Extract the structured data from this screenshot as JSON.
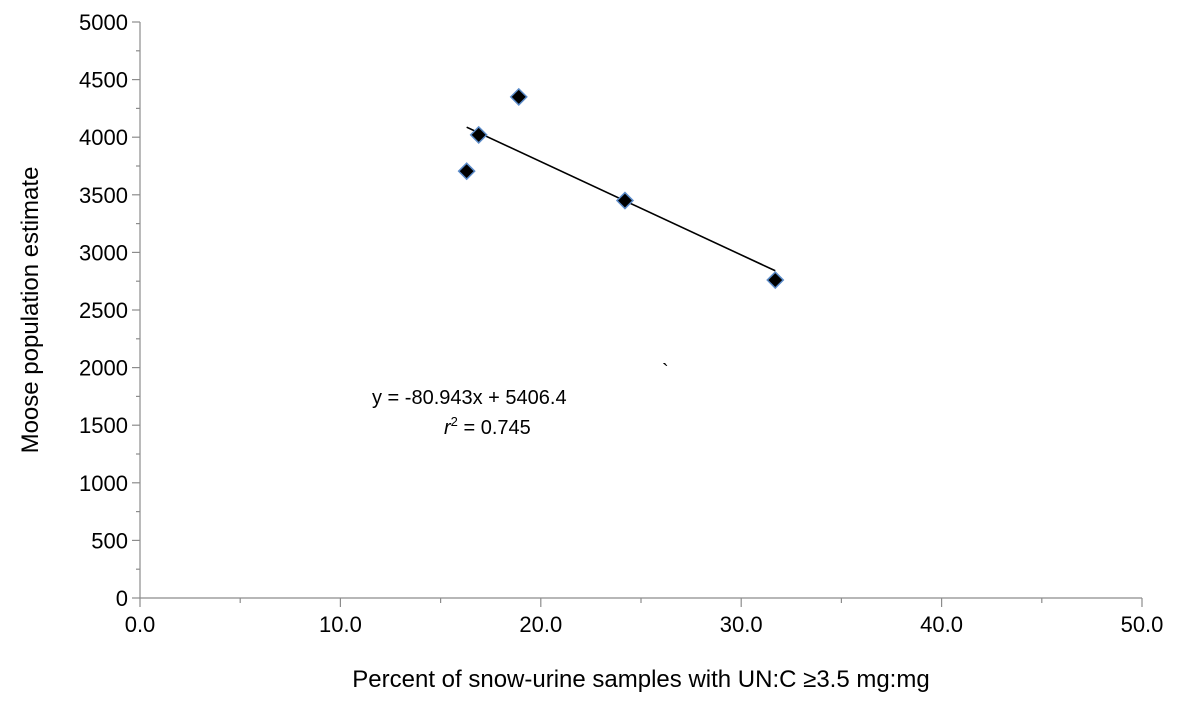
{
  "chart_data": {
    "type": "scatter",
    "xlabel": "Percent of snow-urine samples with UN:C ",
    "xlabel_suffix": "≥3.5 mg:mg",
    "ylabel": "Moose population estimate",
    "xlim": [
      0,
      50
    ],
    "ylim": [
      0,
      5000
    ],
    "x_ticks": [
      "0.0",
      "10.0",
      "20.0",
      "30.0",
      "40.0",
      "50.0"
    ],
    "x_tick_values": [
      0,
      10,
      20,
      30,
      40,
      50
    ],
    "y_ticks": [
      "0",
      "500",
      "1000",
      "1500",
      "2000",
      "2500",
      "3000",
      "3500",
      "4000",
      "4500",
      "5000"
    ],
    "y_tick_values": [
      0,
      500,
      1000,
      1500,
      2000,
      2500,
      3000,
      3500,
      4000,
      4500,
      5000
    ],
    "grid": false,
    "legend": "none",
    "marker": "diamond",
    "marker_color": "#000000",
    "marker_edge_color": "#5b8bc9",
    "trendline_color": "#000000",
    "points": [
      {
        "x": 16.3,
        "y": 3705
      },
      {
        "x": 16.9,
        "y": 4020
      },
      {
        "x": 18.9,
        "y": 4350
      },
      {
        "x": 24.2,
        "y": 3450
      },
      {
        "x": 31.7,
        "y": 2760
      }
    ],
    "trendline": {
      "slope": -80.943,
      "intercept": 5406.4,
      "x_start": 16.3,
      "x_end": 31.7
    },
    "equation": "y = -80.943x + 5406.4",
    "r2_label": {
      "symbol": "r",
      "sup": "2",
      "text": " = 0.745"
    },
    "stray_mark": "`"
  }
}
